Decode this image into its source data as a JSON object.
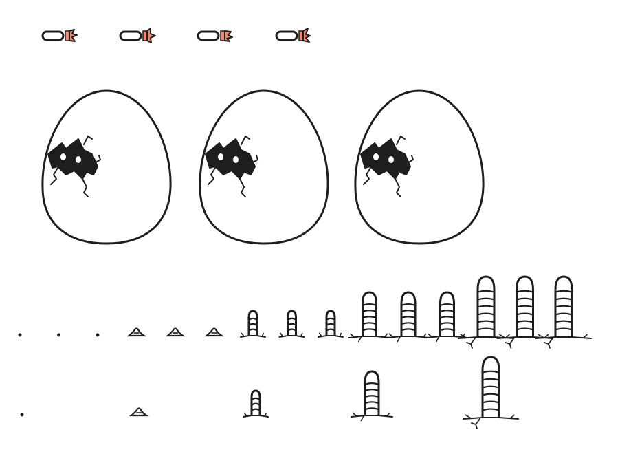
{
  "sprite_sheet": {
    "background": "#ffffff",
    "ink_color": "#1e1e1e",
    "accent_color": "#f08a6e",
    "rows": [
      {
        "name": "pellet-row",
        "sprite": "orange-tipped-pellet",
        "frame_count": 4
      },
      {
        "name": "egg-row",
        "sprite": "cracked-egg",
        "frame_count": 3
      },
      {
        "name": "spike-growth-row",
        "sprite": "ground-spike",
        "stages": 5,
        "frames_per_stage": 3,
        "frame_count": 15
      },
      {
        "name": "spike-stage-row",
        "sprite": "ground-spike",
        "frame_count": 5
      }
    ],
    "spike_stages": [
      "dot",
      "mound",
      "small-spike",
      "medium-spike",
      "large-spike"
    ]
  }
}
